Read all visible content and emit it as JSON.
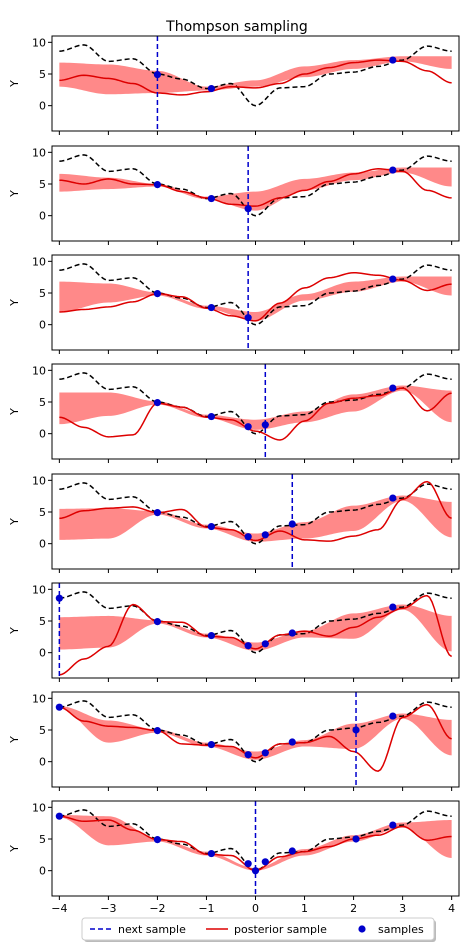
{
  "chart_data": {
    "type": "line",
    "title": "Thompson sampling",
    "xlabel": "",
    "ylabel": "Y",
    "xlim": [
      -4.15,
      4.15
    ],
    "ylim": [
      -4,
      11
    ],
    "x_ticks": [
      -4,
      -3,
      -2,
      -1,
      0,
      1,
      2,
      3,
      4
    ],
    "x_tick_labels": [
      "−4",
      "−3",
      "−2",
      "−1",
      "0",
      "1",
      "2",
      "3",
      "4"
    ],
    "y_ticks": [
      0,
      5,
      10
    ],
    "y_tick_labels": [
      "0",
      "5",
      "10"
    ],
    "grid": false,
    "legend": {
      "placement": "bottom-center",
      "entries": [
        {
          "label": "next sample",
          "style": "dashed",
          "color": "#0000cc"
        },
        {
          "label": "posterior sample",
          "style": "solid",
          "color": "#dd0000"
        },
        {
          "label": "samples",
          "style": "marker",
          "color": "#0000cc"
        }
      ]
    },
    "colors": {
      "band": "#ff6b6b",
      "posterior": "#dd0000",
      "truth": "#000000",
      "next": "#0000cc",
      "samples": "#0000cc"
    },
    "true_function": {
      "x": [
        -4,
        -3.5,
        -3,
        -2.5,
        -2,
        -1.5,
        -1,
        -0.5,
        0,
        0.5,
        1,
        1.5,
        2,
        2.5,
        3,
        3.5,
        4
      ],
      "y": [
        8.6,
        9.6,
        7.0,
        7.4,
        5.0,
        4.2,
        2.7,
        3.5,
        0.0,
        2.8,
        3.0,
        5.0,
        5.3,
        6.2,
        7.2,
        9.4,
        8.6
      ]
    },
    "panels": [
      {
        "samples_x": [
          -2.0,
          -0.9,
          2.8
        ],
        "samples_y": [
          4.9,
          2.7,
          7.2
        ],
        "next_x": -2.0,
        "band_x": [
          -4,
          -3,
          -2,
          -1,
          0,
          1,
          2,
          3,
          4
        ],
        "band_lower": [
          3.0,
          1.8,
          2.0,
          2.4,
          3.0,
          4.5,
          5.8,
          7.0,
          5.8
        ],
        "band_upper": [
          6.8,
          6.5,
          5.5,
          3.0,
          4.0,
          6.2,
          7.2,
          7.8,
          7.8
        ],
        "posterior_x": [
          -4,
          -3.5,
          -3,
          -2.5,
          -2,
          -1.5,
          -1,
          -0.5,
          0,
          0.5,
          1,
          1.5,
          2,
          2.5,
          3,
          3.5,
          4
        ],
        "posterior_y": [
          4.0,
          4.8,
          4.3,
          3.5,
          2.0,
          1.7,
          2.2,
          3.0,
          2.8,
          3.5,
          5.0,
          6.0,
          6.8,
          7.2,
          7.0,
          5.5,
          3.6
        ]
      },
      {
        "samples_x": [
          -2.0,
          -0.9,
          -0.15,
          2.8
        ],
        "samples_y": [
          4.9,
          2.7,
          1.1,
          7.2
        ],
        "next_x": -0.15,
        "band_x": [
          -4,
          -3,
          -2,
          -1,
          0,
          1,
          2,
          3,
          4
        ],
        "band_lower": [
          3.8,
          4.2,
          4.6,
          2.6,
          0.8,
          4.0,
          5.6,
          6.8,
          4.6
        ],
        "band_upper": [
          6.6,
          6.0,
          5.0,
          3.0,
          3.8,
          5.8,
          6.8,
          7.6,
          7.6
        ],
        "posterior_x": [
          -4,
          -3.5,
          -3,
          -2.5,
          -2,
          -1.5,
          -1,
          -0.5,
          0,
          0.5,
          1,
          1.5,
          2,
          2.5,
          3,
          3.5,
          4
        ],
        "posterior_y": [
          5.6,
          5.0,
          5.8,
          5.0,
          4.9,
          3.8,
          2.8,
          1.8,
          1.5,
          2.8,
          4.0,
          5.4,
          6.6,
          7.4,
          7.0,
          4.0,
          2.8
        ]
      },
      {
        "samples_x": [
          -2.0,
          -0.9,
          -0.15,
          2.8
        ],
        "samples_y": [
          4.9,
          2.7,
          1.1,
          7.2
        ],
        "next_x": -0.15,
        "band_x": [
          -4,
          -3,
          -2,
          -1,
          0,
          1,
          2,
          3,
          4
        ],
        "band_lower": [
          2.0,
          3.5,
          4.6,
          2.5,
          0.6,
          3.8,
          5.2,
          6.8,
          4.6
        ],
        "band_upper": [
          6.8,
          6.5,
          5.1,
          3.0,
          2.0,
          4.8,
          6.8,
          7.6,
          7.6
        ],
        "posterior_x": [
          -4,
          -3.5,
          -3,
          -2.5,
          -2,
          -1.5,
          -1,
          -0.5,
          0,
          0.5,
          1,
          1.5,
          2,
          2.5,
          3,
          3.5,
          4
        ],
        "posterior_y": [
          2.0,
          2.4,
          2.8,
          3.6,
          4.9,
          4.4,
          2.6,
          1.4,
          0.6,
          3.4,
          5.8,
          7.4,
          8.2,
          7.8,
          7.0,
          5.4,
          6.4
        ]
      },
      {
        "samples_x": [
          -2.0,
          -0.9,
          -0.15,
          0.2,
          2.8
        ],
        "samples_y": [
          4.9,
          2.7,
          1.1,
          1.4,
          7.2
        ],
        "next_x": 0.2,
        "band_x": [
          -4,
          -3,
          -2,
          -1,
          0,
          1,
          2,
          3,
          4
        ],
        "band_lower": [
          1.5,
          2.8,
          4.6,
          2.5,
          0.6,
          1.8,
          3.5,
          6.8,
          1.8
        ],
        "band_upper": [
          6.5,
          6.5,
          5.1,
          3.0,
          2.2,
          3.5,
          6.2,
          7.6,
          6.8
        ],
        "posterior_x": [
          -4,
          -3.5,
          -3,
          -2.5,
          -2,
          -1.5,
          -1,
          -0.5,
          0,
          0.5,
          1,
          1.5,
          2,
          2.5,
          3,
          3.5,
          4
        ],
        "posterior_y": [
          2.6,
          1.0,
          -0.5,
          -0.2,
          4.8,
          4.2,
          2.6,
          2.2,
          0.4,
          -1.0,
          2.0,
          4.8,
          5.6,
          6.0,
          7.2,
          3.6,
          6.4
        ]
      },
      {
        "samples_x": [
          -2.0,
          -0.9,
          -0.15,
          0.2,
          0.75,
          2.8
        ],
        "samples_y": [
          4.9,
          2.7,
          1.1,
          1.4,
          3.1,
          7.2
        ],
        "next_x": 0.75,
        "band_x": [
          -4,
          -3,
          -2,
          -1,
          0,
          1,
          2,
          3,
          4
        ],
        "band_lower": [
          0.6,
          0.8,
          4.6,
          2.4,
          0.3,
          0.8,
          2.0,
          6.8,
          1.0
        ],
        "band_upper": [
          5.5,
          5.6,
          5.1,
          3.0,
          1.6,
          3.4,
          6.0,
          7.6,
          6.6
        ],
        "posterior_x": [
          -4,
          -3.5,
          -3,
          -2.5,
          -2,
          -1.5,
          -1,
          -0.5,
          0,
          0.5,
          1,
          1.5,
          2,
          2.5,
          3,
          3.5,
          4
        ],
        "posterior_y": [
          4.0,
          5.2,
          5.6,
          5.8,
          4.9,
          5.4,
          2.6,
          2.2,
          0.5,
          2.0,
          0.6,
          0.4,
          1.2,
          2.2,
          7.0,
          9.8,
          4.0
        ]
      },
      {
        "samples_x": [
          -4.0,
          -2.0,
          -0.9,
          -0.15,
          0.2,
          0.75,
          2.8
        ],
        "samples_y": [
          8.6,
          4.9,
          2.7,
          1.1,
          1.4,
          3.1,
          7.2
        ],
        "next_x": -4.0,
        "band_x": [
          -4,
          -3,
          -2,
          -1,
          0,
          1,
          2,
          3,
          4
        ],
        "band_lower": [
          0.5,
          0.8,
          4.6,
          2.4,
          0.3,
          2.4,
          2.2,
          6.8,
          0.2
        ],
        "band_upper": [
          5.6,
          5.8,
          5.1,
          3.0,
          1.6,
          3.4,
          6.2,
          7.6,
          5.8
        ],
        "posterior_x": [
          -4,
          -3.5,
          -3,
          -2.5,
          -2,
          -1.5,
          -1,
          -0.5,
          0,
          0.5,
          1,
          1.5,
          2,
          2.5,
          3,
          3.5,
          4
        ],
        "posterior_y": [
          -3.5,
          -1.0,
          1.0,
          7.6,
          4.9,
          4.8,
          2.6,
          2.4,
          0.6,
          2.8,
          3.4,
          2.6,
          4.0,
          5.6,
          7.0,
          9.0,
          -0.6
        ]
      },
      {
        "samples_x": [
          -4.0,
          -2.0,
          -0.9,
          -0.15,
          0.2,
          0.75,
          2.05,
          2.8
        ],
        "samples_y": [
          8.6,
          4.9,
          2.7,
          1.1,
          1.4,
          3.1,
          5.0,
          7.2
        ],
        "next_x": 2.05,
        "band_x": [
          -4,
          -3,
          -2,
          -1,
          0,
          1,
          2,
          3,
          4
        ],
        "band_lower": [
          8.4,
          3.0,
          4.6,
          2.4,
          0.3,
          2.4,
          2.0,
          6.8,
          1.0
        ],
        "band_upper": [
          8.8,
          6.5,
          5.1,
          3.0,
          1.6,
          3.4,
          6.0,
          7.6,
          6.6
        ],
        "posterior_x": [
          -4,
          -3.5,
          -3,
          -2.5,
          -2,
          -1.5,
          -1,
          -0.5,
          0,
          0.5,
          1,
          1.5,
          2,
          2.5,
          3,
          3.5,
          4
        ],
        "posterior_y": [
          8.6,
          6.4,
          5.6,
          5.4,
          4.9,
          2.8,
          2.6,
          2.4,
          0.6,
          2.8,
          3.0,
          4.0,
          1.6,
          -1.5,
          7.0,
          9.0,
          3.6
        ]
      },
      {
        "samples_x": [
          -4.0,
          -2.0,
          -0.9,
          -0.15,
          0.0,
          0.2,
          0.75,
          2.05,
          2.8
        ],
        "samples_y": [
          8.6,
          4.9,
          2.7,
          1.1,
          0.0,
          1.4,
          3.1,
          5.0,
          7.2
        ],
        "next_x": 0.0,
        "band_x": [
          -4,
          -3,
          -2,
          -1,
          0,
          1,
          2,
          3,
          4
        ],
        "band_lower": [
          8.4,
          4.0,
          4.6,
          2.4,
          0.0,
          2.4,
          4.6,
          6.8,
          2.0
        ],
        "band_upper": [
          8.8,
          8.6,
          5.1,
          3.0,
          0.4,
          3.4,
          5.6,
          7.6,
          8.0
        ],
        "posterior_x": [
          -4,
          -3.5,
          -3,
          -2.5,
          -2,
          -1.5,
          -1,
          -0.5,
          0,
          0.5,
          1,
          1.5,
          2,
          2.5,
          3,
          3.5,
          4
        ],
        "posterior_y": [
          8.6,
          7.8,
          8.0,
          6.4,
          4.9,
          4.6,
          2.6,
          2.4,
          0.0,
          2.2,
          3.0,
          3.8,
          5.0,
          5.6,
          7.0,
          4.8,
          5.4
        ]
      }
    ]
  }
}
